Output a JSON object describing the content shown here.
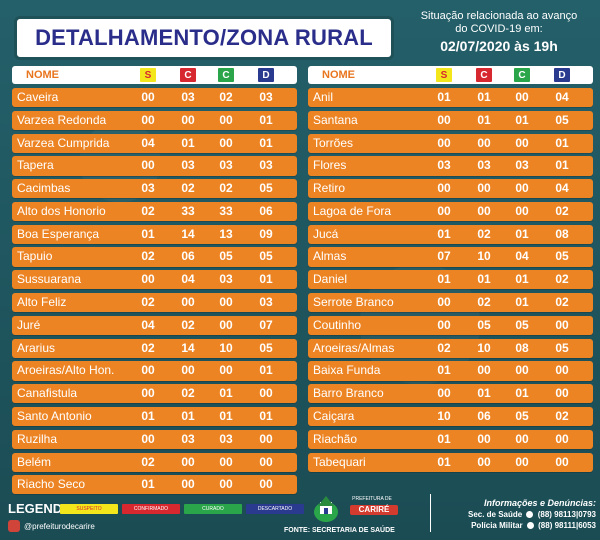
{
  "title": "DETALHAMENTO/ZONA RURAL",
  "situation": {
    "line1": "Situação relacionada ao avanço",
    "line2": "do COVID-19 em:",
    "date": "02/07/2020 às 19h"
  },
  "colors": {
    "S": "#f3e61b",
    "C": "#d8282f",
    "Cu": "#2aa54a",
    "D": "#2a3a8f",
    "row": "#ec8424",
    "bg": "#1f5258",
    "title": "#2a2d8a"
  },
  "header": {
    "name": "NOME",
    "badges": [
      "S",
      "C",
      "C",
      "D"
    ]
  },
  "left_rows": [
    {
      "name": "Caveira",
      "values": [
        "00",
        "03",
        "02",
        "03"
      ]
    },
    {
      "name": "Varzea Redonda",
      "values": [
        "00",
        "00",
        "00",
        "01"
      ]
    },
    {
      "name": "Varzea Cumprida",
      "values": [
        "04",
        "01",
        "00",
        "01"
      ]
    },
    {
      "name": "Tapera",
      "values": [
        "00",
        "03",
        "03",
        "03"
      ]
    },
    {
      "name": "Cacimbas",
      "values": [
        "03",
        "02",
        "02",
        "05"
      ]
    },
    {
      "name": "Alto dos Honorio",
      "values": [
        "02",
        "33",
        "33",
        "06"
      ]
    },
    {
      "name": "Boa Esperança",
      "values": [
        "01",
        "14",
        "13",
        "09"
      ]
    },
    {
      "name": "Tapuio",
      "values": [
        "02",
        "06",
        "05",
        "05"
      ]
    },
    {
      "name": "Sussuarana",
      "values": [
        "00",
        "04",
        "03",
        "01"
      ]
    },
    {
      "name": "Alto Feliz",
      "values": [
        "02",
        "00",
        "00",
        "03"
      ]
    },
    {
      "name": "Juré",
      "values": [
        "04",
        "02",
        "00",
        "07"
      ]
    },
    {
      "name": "Ararius",
      "values": [
        "02",
        "14",
        "10",
        "05"
      ]
    },
    {
      "name": "Aroeiras/Alto Hon.",
      "values": [
        "00",
        "00",
        "00",
        "01"
      ]
    },
    {
      "name": "Canafistula",
      "values": [
        "00",
        "02",
        "01",
        "00"
      ]
    },
    {
      "name": "Santo Antonio",
      "values": [
        "01",
        "01",
        "01",
        "01"
      ]
    },
    {
      "name": "Ruzilha",
      "values": [
        "00",
        "03",
        "03",
        "00"
      ]
    },
    {
      "name": "Belém",
      "values": [
        "02",
        "00",
        "00",
        "00"
      ]
    },
    {
      "name": "Riacho Seco",
      "values": [
        "01",
        "00",
        "00",
        "00"
      ]
    }
  ],
  "right_rows": [
    {
      "name": "Anil",
      "values": [
        "01",
        "01",
        "00",
        "04"
      ]
    },
    {
      "name": "Santana",
      "values": [
        "00",
        "01",
        "01",
        "05"
      ]
    },
    {
      "name": "Torrões",
      "values": [
        "00",
        "00",
        "00",
        "01"
      ]
    },
    {
      "name": "Flores",
      "values": [
        "03",
        "03",
        "03",
        "01"
      ]
    },
    {
      "name": "Retiro",
      "values": [
        "00",
        "00",
        "00",
        "04"
      ]
    },
    {
      "name": "Lagoa de Fora",
      "values": [
        "00",
        "00",
        "00",
        "02"
      ]
    },
    {
      "name": "Jucá",
      "values": [
        "01",
        "02",
        "01",
        "08"
      ]
    },
    {
      "name": "Almas",
      "values": [
        "07",
        "10",
        "04",
        "05"
      ]
    },
    {
      "name": "Daniel",
      "values": [
        "01",
        "01",
        "01",
        "02"
      ]
    },
    {
      "name": "Serrote Branco",
      "values": [
        "00",
        "02",
        "01",
        "02"
      ]
    },
    {
      "name": "Coutinho",
      "values": [
        "00",
        "05",
        "05",
        "00"
      ]
    },
    {
      "name": "Aroeiras/Almas",
      "values": [
        "02",
        "10",
        "08",
        "05"
      ]
    },
    {
      "name": "Baixa Funda",
      "values": [
        "01",
        "00",
        "00",
        "00"
      ]
    },
    {
      "name": "Barro Branco",
      "values": [
        "00",
        "01",
        "01",
        "00"
      ]
    },
    {
      "name": "Caiçara",
      "values": [
        "10",
        "06",
        "05",
        "02"
      ]
    },
    {
      "name": "Riachão",
      "values": [
        "01",
        "00",
        "00",
        "00"
      ]
    },
    {
      "name": "Tabequari",
      "values": [
        "01",
        "00",
        "00",
        "00"
      ]
    }
  ],
  "legend": {
    "label": "LEGENDA",
    "items": [
      {
        "text": "SUSPEITO",
        "color": "#f3e61b"
      },
      {
        "text": "CONFIRMADO",
        "color": "#d8282f"
      },
      {
        "text": "CURADO",
        "color": "#2aa54a"
      },
      {
        "text": "DESCARTADO",
        "color": "#2a3a8f"
      }
    ]
  },
  "social": "@prefeiturodecarire",
  "logo": {
    "top": "PREFEITURA DE",
    "brand": "CARIRÉ",
    "icon": "prefeitura-logo"
  },
  "fonte": "FONTE: SECRETARIA DE SAÚDE",
  "info": {
    "title": "Informações e Denúncias:",
    "line1": "Sec. de Saúde",
    "phone1": "(88) 98113|0793",
    "line2": "Polícia Militar",
    "phone2": "(88) 98111|6053"
  }
}
